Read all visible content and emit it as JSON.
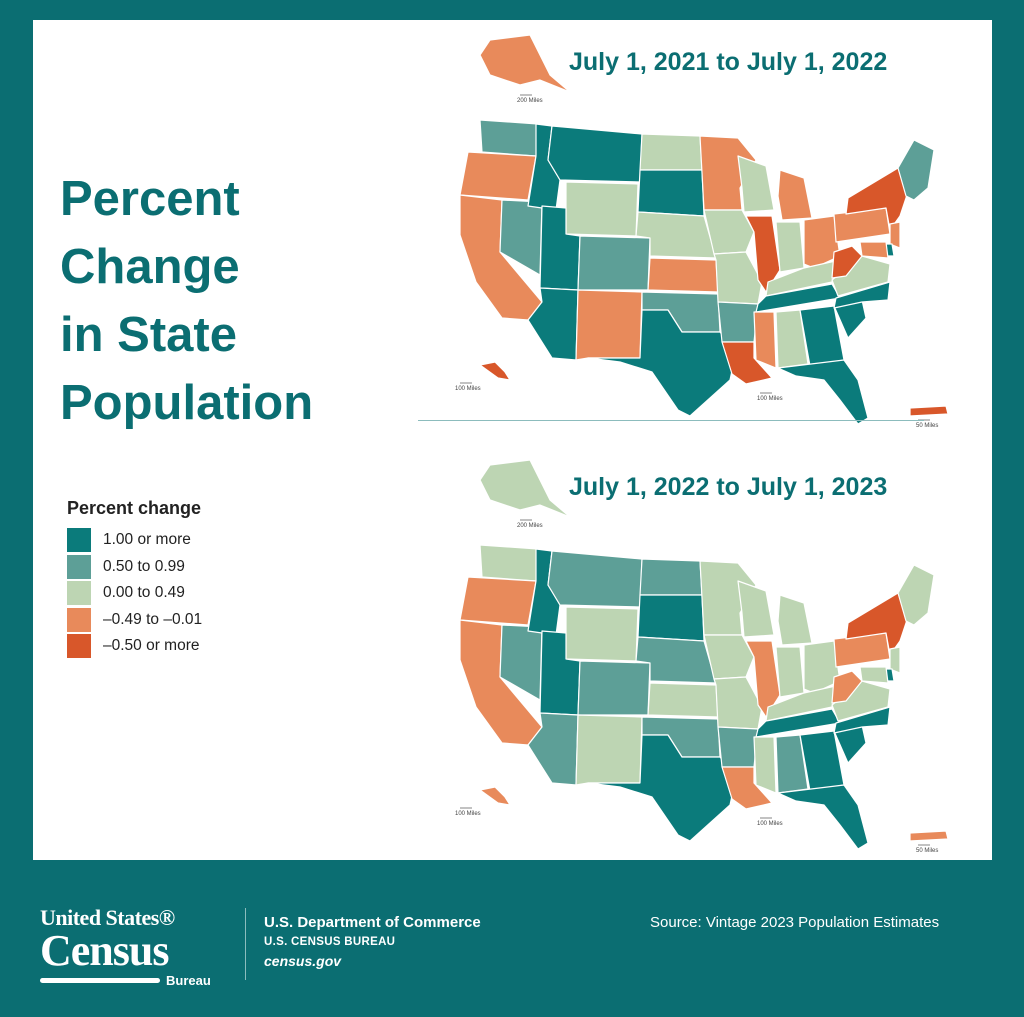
{
  "title_lines": [
    "Percent",
    "Change",
    "in State",
    "Population"
  ],
  "legend": {
    "title": "Percent change",
    "items": [
      {
        "label": "1.00 or more",
        "color": "#0b7b7b"
      },
      {
        "label": "0.50 to 0.99",
        "color": "#5d9f97"
      },
      {
        "label": "0.00 to 0.49",
        "color": "#bdd5b3"
      },
      {
        "label": "–0.49 to –0.01",
        "color": "#e88a5b"
      },
      {
        "label": "–0.50 or more",
        "color": "#d8572a"
      }
    ]
  },
  "maps": [
    {
      "title": "July 1, 2021 to July 1, 2022",
      "scale_labels": {
        "alaska": "200 Miles",
        "hawaii": "100 Miles",
        "mainland": "100 Miles",
        "puerto_rico": "50 Miles"
      },
      "states": {
        "WA": "#5d9f97",
        "OR": "#e88a5b",
        "CA": "#e88a5b",
        "NV": "#5d9f97",
        "ID": "#0b7b7b",
        "MT": "#0b7b7b",
        "WY": "#bdd5b3",
        "UT": "#0b7b7b",
        "AZ": "#0b7b7b",
        "CO": "#5d9f97",
        "NM": "#e88a5b",
        "ND": "#bdd5b3",
        "SD": "#0b7b7b",
        "NE": "#bdd5b3",
        "KS": "#e88a5b",
        "OK": "#5d9f97",
        "TX": "#0b7b7b",
        "MN": "#e88a5b",
        "IA": "#bdd5b3",
        "MO": "#bdd5b3",
        "AR": "#5d9f97",
        "LA": "#d8572a",
        "WI": "#bdd5b3",
        "IL": "#d8572a",
        "MI": "#e88a5b",
        "IN": "#bdd5b3",
        "OH": "#e88a5b",
        "KY": "#bdd5b3",
        "TN": "#0b7b7b",
        "MS": "#e88a5b",
        "AL": "#bdd5b3",
        "GA": "#0b7b7b",
        "FL": "#0b7b7b",
        "SC": "#0b7b7b",
        "NC": "#0b7b7b",
        "VA": "#bdd5b3",
        "WV": "#d8572a",
        "PA": "#e88a5b",
        "NY": "#d8572a",
        "NJ": "#e88a5b",
        "DE": "#0b7b7b",
        "MD": "#e88a5b",
        "NE_US": "#5d9f97",
        "AK": "#e88a5b",
        "HI": "#d8572a",
        "PR": "#d8572a"
      }
    },
    {
      "title": "July 1, 2022 to July 1, 2023",
      "scale_labels": {
        "alaska": "200 Miles",
        "hawaii": "100 Miles",
        "mainland": "100 Miles",
        "puerto_rico": "50 Miles"
      },
      "states": {
        "WA": "#bdd5b3",
        "OR": "#e88a5b",
        "CA": "#e88a5b",
        "NV": "#5d9f97",
        "ID": "#0b7b7b",
        "MT": "#5d9f97",
        "WY": "#bdd5b3",
        "UT": "#0b7b7b",
        "AZ": "#5d9f97",
        "CO": "#5d9f97",
        "NM": "#bdd5b3",
        "ND": "#5d9f97",
        "SD": "#0b7b7b",
        "NE": "#5d9f97",
        "KS": "#bdd5b3",
        "OK": "#5d9f97",
        "TX": "#0b7b7b",
        "MN": "#bdd5b3",
        "IA": "#bdd5b3",
        "MO": "#bdd5b3",
        "AR": "#5d9f97",
        "LA": "#e88a5b",
        "WI": "#bdd5b3",
        "IL": "#e88a5b",
        "MI": "#bdd5b3",
        "IN": "#bdd5b3",
        "OH": "#bdd5b3",
        "KY": "#bdd5b3",
        "TN": "#0b7b7b",
        "MS": "#bdd5b3",
        "AL": "#5d9f97",
        "GA": "#0b7b7b",
        "FL": "#0b7b7b",
        "SC": "#0b7b7b",
        "NC": "#0b7b7b",
        "VA": "#bdd5b3",
        "WV": "#e88a5b",
        "PA": "#e88a5b",
        "NY": "#d8572a",
        "NJ": "#bdd5b3",
        "DE": "#0b7b7b",
        "MD": "#bdd5b3",
        "NE_US": "#bdd5b3",
        "AK": "#bdd5b3",
        "HI": "#e88a5b",
        "PR": "#e88a5b"
      }
    }
  ],
  "footer": {
    "logo_top": "United States®",
    "logo_main": "Census",
    "logo_bottom": "Bureau",
    "dept_line1": "U.S. Department of Commerce",
    "dept_line2": "U.S. CENSUS BUREAU",
    "dept_line3": "census.gov",
    "source": "Source: Vintage 2023 Population Estimates"
  }
}
